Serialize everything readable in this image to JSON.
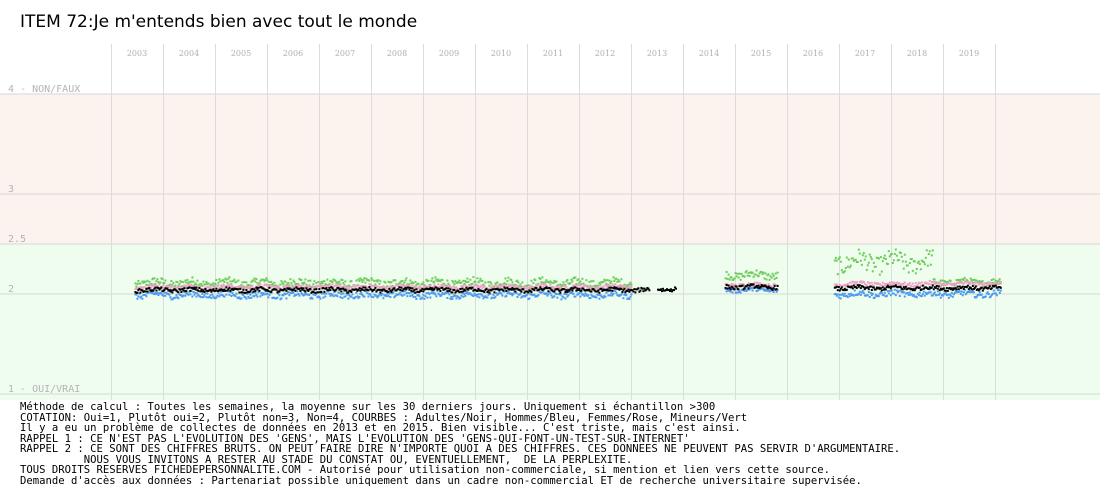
{
  "title": "ITEM 72:Je m'entends bien avec tout le monde",
  "chart_data": {
    "type": "scatter",
    "x_ticks": [
      "2003",
      "2004",
      "2005",
      "2006",
      "2007",
      "2008",
      "2009",
      "2010",
      "2011",
      "2012",
      "2013",
      "2014",
      "2015",
      "2016",
      "2017",
      "2018",
      "2019"
    ],
    "y_ticks": [
      {
        "value": 4,
        "label": "4 - NON/FAUX"
      },
      {
        "value": 3,
        "label": "3"
      },
      {
        "value": 2.5,
        "label": "2.5"
      },
      {
        "value": 2,
        "label": "2"
      },
      {
        "value": 1,
        "label": "1 - OUI/VRAI"
      }
    ],
    "ylim": [
      1,
      4
    ],
    "xlim": [
      2002.5,
      2020.0
    ],
    "grid": true,
    "zones": [
      {
        "from": 2.5,
        "to": 4,
        "color": "#fdf3ee"
      },
      {
        "from": 1,
        "to": 2.5,
        "color": "#effdef"
      }
    ],
    "series": [
      {
        "name": "Adultes",
        "color": "#000000",
        "segments": [
          {
            "start": 2002.95,
            "end": 2012.85,
            "base": 2.05,
            "amp": 0.02
          },
          {
            "start": 2013.0,
            "end": 2013.35,
            "base": 2.06,
            "amp": 0.02
          },
          {
            "start": 2014.3,
            "end": 2015.3,
            "base": 2.08,
            "amp": 0.02
          },
          {
            "start": 2016.4,
            "end": 2019.6,
            "base": 2.07,
            "amp": 0.02
          }
        ]
      },
      {
        "name": "Hommes",
        "color": "#4a9af0",
        "segments": [
          {
            "start": 2002.95,
            "end": 2012.5,
            "base": 2.0,
            "amp": 0.03
          },
          {
            "start": 2014.3,
            "end": 2015.3,
            "base": 2.05,
            "amp": 0.02
          },
          {
            "start": 2016.4,
            "end": 2019.6,
            "base": 2.01,
            "amp": 0.03
          }
        ]
      },
      {
        "name": "Femmes",
        "color": "#f0a0c8",
        "segments": [
          {
            "start": 2002.95,
            "end": 2012.5,
            "base": 2.08,
            "amp": 0.02
          },
          {
            "start": 2014.3,
            "end": 2015.3,
            "base": 2.1,
            "amp": 0.02
          },
          {
            "start": 2016.4,
            "end": 2019.6,
            "base": 2.11,
            "amp": 0.02
          }
        ]
      },
      {
        "name": "Mineurs",
        "color": "#6ccc5a",
        "segments": [
          {
            "start": 2002.95,
            "end": 2012.5,
            "base": 2.12,
            "amp": 0.04
          },
          {
            "start": 2014.3,
            "end": 2015.3,
            "base": 2.2,
            "amp": 0.04
          },
          {
            "start": 2016.4,
            "end": 2018.3,
            "base": 2.33,
            "amp": 0.09
          },
          {
            "start": 2018.3,
            "end": 2019.6,
            "base": 2.13,
            "amp": 0.03
          }
        ]
      }
    ]
  },
  "notes": [
    "Méthode de calcul : Toutes les semaines, la moyenne sur les 30 derniers jours. Uniquement si échantillon >300",
    "COTATION: Oui=1, Plutôt oui=2, Plutôt non=3, Non=4, COURBES : Adultes/Noir, Hommes/Bleu, Femmes/Rose, Mineurs/Vert",
    "Il y a eu un problème de collectes de données en 2013 et en 2015. Bien visible... C'est triste, mais c'est ainsi.",
    "RAPPEL 1 : CE N'EST PAS L'EVOLUTION DES 'GENS', MAIS L'EVOLUTION DES 'GENS-QUI-FONT-UN-TEST-SUR-INTERNET'",
    "RAPPEL 2 : CE SONT DES CHIFFRES BRUTS. ON PEUT FAIRE DIRE N'IMPORTE QUOI A DES CHIFFRES. CES DONNEES NE PEUVENT PAS SERVIR D'ARGUMENTAIRE.",
    "          NOUS VOUS INVITONS A RESTER AU STADE DU CONSTAT OU, EVENTUELLEMENT,  DE LA PERPLEXITE.",
    "TOUS DROITS RESERVES FICHEDEPERSONNALITE.COM - Autorisé pour utilisation non-commerciale, si mention et lien vers cette source.",
    "Demande d'accès aux données : Partenariat possible uniquement dans un cadre non-commercial ET de recherche universitaire supervisée."
  ]
}
